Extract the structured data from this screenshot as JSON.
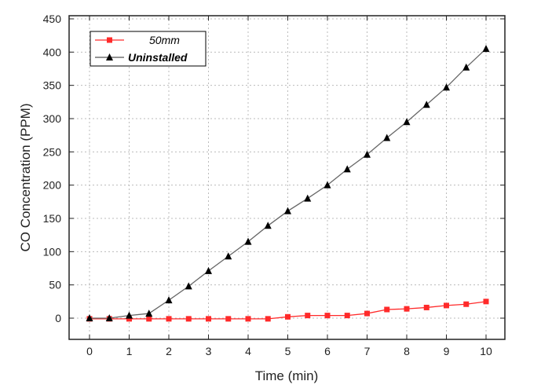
{
  "chart_data": {
    "type": "line",
    "title": "",
    "xlabel": "Time (min)",
    "ylabel": "CO Concentration (PPM)",
    "xlim": [
      -0.5,
      10.5
    ],
    "ylim": [
      -33,
      455
    ],
    "xticks": [
      0,
      1,
      2,
      3,
      4,
      5,
      6,
      7,
      8,
      9,
      10
    ],
    "yticks": [
      0,
      50,
      100,
      150,
      200,
      250,
      300,
      350,
      400,
      450
    ],
    "grid": true,
    "legend_position": "top-left",
    "x": [
      0,
      0.5,
      1,
      1.5,
      2,
      2.5,
      3,
      3.5,
      4,
      4.5,
      5,
      5.5,
      6,
      6.5,
      7,
      7.5,
      8,
      8.5,
      9,
      9.5,
      10
    ],
    "series": [
      {
        "name": "50mm",
        "color": "#ff2a2a",
        "marker": "square",
        "values": [
          -1,
          -1,
          -1,
          -1,
          -1,
          -1,
          -1,
          -1,
          -1,
          -1,
          2,
          4,
          4,
          4,
          7,
          13,
          14,
          16,
          19,
          21,
          25
        ]
      },
      {
        "name": "Uninstalled",
        "color": "#000000",
        "marker": "triangle",
        "values": [
          0,
          0,
          4,
          7,
          27,
          48,
          71,
          93,
          115,
          139,
          161,
          180,
          200,
          224,
          246,
          271,
          295,
          321,
          347,
          377,
          405
        ]
      }
    ]
  }
}
